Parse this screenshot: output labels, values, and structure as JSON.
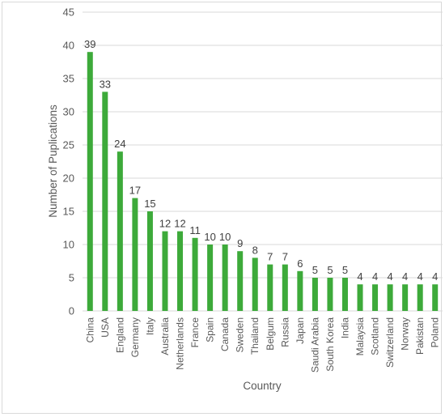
{
  "chart_data": {
    "type": "bar",
    "xlabel": "Country",
    "ylabel": "Number of Puplications",
    "ylim": [
      0,
      45
    ],
    "yticks": [
      0,
      5,
      10,
      15,
      20,
      25,
      30,
      35,
      40,
      45
    ],
    "grid": "horizontal",
    "categories": [
      "China",
      "USA",
      "England",
      "Germany",
      "Italy",
      "Australia",
      "Netherlands",
      "France",
      "Spain",
      "Canada",
      "Sweden",
      "Thailand",
      "Belgum",
      "Russia",
      "Japan",
      "Saudi Arabia",
      "South Korea",
      "India",
      "Malaysia",
      "Scotland",
      "Switzerland",
      "Norway",
      "Pakistan",
      "Poland"
    ],
    "values": [
      39,
      33,
      24,
      17,
      15,
      12,
      12,
      11,
      10,
      10,
      9,
      8,
      7,
      7,
      6,
      5,
      5,
      5,
      4,
      4,
      4,
      4,
      4,
      4
    ],
    "colors": {
      "bar": "#3daa3a",
      "grid": "#d9d9d9",
      "text": "#595959",
      "label": "#404040"
    }
  }
}
